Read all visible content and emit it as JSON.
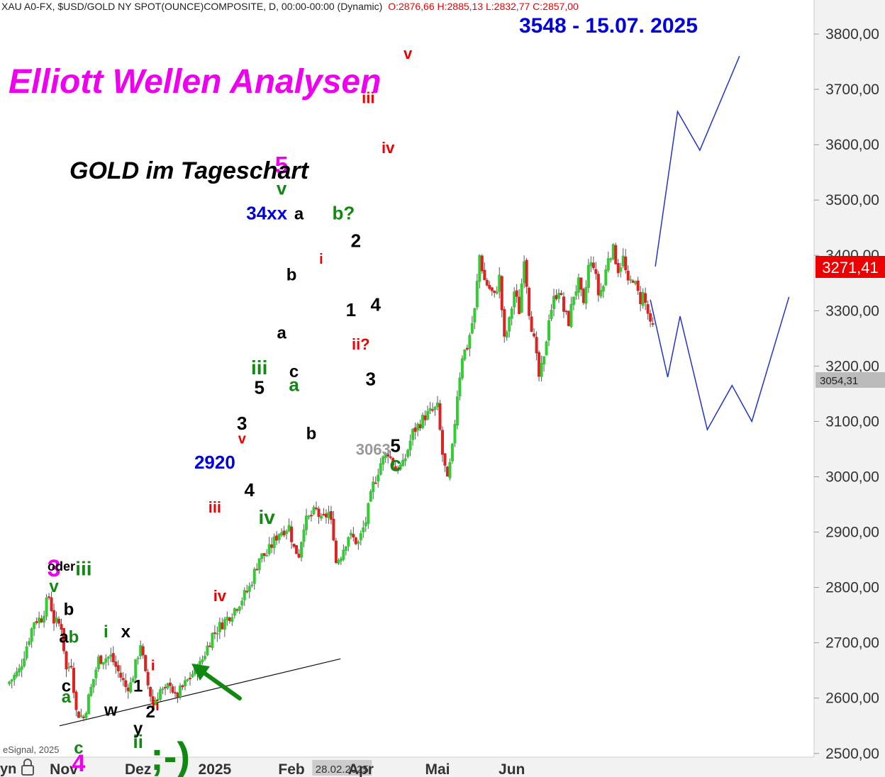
{
  "header": {
    "symbol": "XAU A0-FX, $USD/GOLD NY SPOT(OUNCE)COMPOSITE, D, 00:00-00:00 (Dynamic)",
    "ohlc": "O:2876,66 H:2885,13 L:2832,77 C:2857,00"
  },
  "title": "Elliott Wellen Analysen",
  "subtitle": "GOLD im Tageschart",
  "target_label": "3548 - 15.07. 2025",
  "footer": "eSignal, 2025",
  "lock_label": "yn",
  "colors": {
    "up": "#33cc33",
    "down": "#dd2222",
    "magenta": "#ee00ee",
    "blue": "#0000dd",
    "red": "#ee0000",
    "green": "#118811",
    "black": "#000000",
    "gray": "#999999",
    "price_box": "#ee0000",
    "forecast": "#2233cc"
  },
  "chart_data": {
    "type": "candlestick",
    "ylim": [
      2440,
      3830
    ],
    "ylabel": "",
    "xlabel": "",
    "last_price": "3271,41",
    "level_marker": {
      "value": 3054.31,
      "label": "3054,31"
    },
    "y_ticks": [
      {
        "value": 2500,
        "label": "2500,00"
      },
      {
        "value": 2600,
        "label": "2600,00"
      },
      {
        "value": 2700,
        "label": "2700,00"
      },
      {
        "value": 2800,
        "label": "2800,00"
      },
      {
        "value": 2900,
        "label": "2900,00"
      },
      {
        "value": 3000,
        "label": "3000,00"
      },
      {
        "value": 3100,
        "label": "3100,00"
      },
      {
        "value": 3200,
        "label": "3200,00"
      },
      {
        "value": 3300,
        "label": "3300,00"
      },
      {
        "value": 3400,
        "label": "3400,00"
      },
      {
        "value": 3500,
        "label": "3500,00"
      },
      {
        "value": 3600,
        "label": "3600,00"
      },
      {
        "value": 3700,
        "label": "3700,00"
      },
      {
        "value": 3800,
        "label": "3800,00"
      }
    ],
    "x_ticks": [
      {
        "day": 5,
        "label": "Nov"
      },
      {
        "day": 35,
        "label": "Dez"
      },
      {
        "day": 66,
        "label": "2025"
      },
      {
        "day": 97,
        "label": "Feb"
      },
      {
        "day": 122,
        "label": "28.02.2025"
      },
      {
        "day": 125,
        "label": "Apr"
      },
      {
        "day": 156,
        "label": "Mai"
      },
      {
        "day": 186,
        "label": "Jun"
      }
    ],
    "price_path": [
      [
        -17,
        2625
      ],
      [
        -12,
        2650
      ],
      [
        -6,
        2740
      ],
      [
        -3,
        2745
      ],
      [
        0,
        2785
      ],
      [
        2,
        2740
      ],
      [
        5,
        2730
      ],
      [
        7,
        2650
      ],
      [
        9,
        2665
      ],
      [
        11,
        2575
      ],
      [
        14,
        2565
      ],
      [
        20,
        2670
      ],
      [
        25,
        2675
      ],
      [
        31,
        2620
      ],
      [
        33,
        2625
      ],
      [
        35,
        2660
      ],
      [
        37,
        2700
      ],
      [
        39,
        2640
      ],
      [
        42,
        2590
      ],
      [
        45,
        2615
      ],
      [
        47,
        2610
      ],
      [
        49,
        2630
      ],
      [
        51,
        2600
      ],
      [
        55,
        2625
      ],
      [
        58,
        2645
      ],
      [
        61,
        2660
      ],
      [
        66,
        2715
      ],
      [
        73,
        2750
      ],
      [
        78,
        2780
      ],
      [
        81,
        2800
      ],
      [
        85,
        2855
      ],
      [
        88,
        2860
      ],
      [
        93,
        2900
      ],
      [
        97,
        2910
      ],
      [
        99,
        2870
      ],
      [
        101,
        2860
      ],
      [
        103,
        2915
      ],
      [
        105,
        2925
      ],
      [
        108,
        2940
      ],
      [
        110,
        2920
      ],
      [
        113,
        2935
      ],
      [
        115,
        2895
      ],
      [
        116,
        2845
      ],
      [
        118,
        2860
      ],
      [
        121,
        2895
      ],
      [
        125,
        2880
      ],
      [
        128,
        2920
      ],
      [
        131,
        2985
      ],
      [
        134,
        3025
      ],
      [
        137,
        3045
      ],
      [
        140,
        3015
      ],
      [
        143,
        3020
      ],
      [
        147,
        3080
      ],
      [
        152,
        3110
      ],
      [
        157,
        3125
      ],
      [
        159,
        3040
      ],
      [
        161,
        2990
      ],
      [
        163,
        3050
      ],
      [
        165,
        3150
      ],
      [
        167,
        3220
      ],
      [
        169,
        3235
      ],
      [
        172,
        3300
      ],
      [
        174,
        3400
      ],
      [
        176,
        3355
      ],
      [
        178,
        3340
      ],
      [
        180,
        3325
      ],
      [
        182,
        3360
      ],
      [
        184,
        3245
      ],
      [
        186,
        3280
      ],
      [
        188,
        3335
      ],
      [
        190,
        3300
      ],
      [
        192,
        3400
      ],
      [
        194,
        3300
      ],
      [
        196,
        3245
      ],
      [
        198,
        3180
      ],
      [
        200,
        3210
      ],
      [
        202,
        3290
      ],
      [
        204,
        3320
      ],
      [
        206,
        3340
      ],
      [
        208,
        3300
      ],
      [
        210,
        3280
      ],
      [
        212,
        3330
      ],
      [
        214,
        3350
      ],
      [
        216,
        3305
      ],
      [
        218,
        3380
      ],
      [
        220,
        3385
      ],
      [
        222,
        3330
      ],
      [
        224,
        3345
      ],
      [
        226,
        3400
      ],
      [
        228,
        3410
      ],
      [
        230,
        3375
      ],
      [
        232,
        3395
      ],
      [
        234,
        3345
      ],
      [
        236,
        3360
      ],
      [
        238,
        3330
      ],
      [
        239,
        3320
      ],
      [
        240,
        3330
      ],
      [
        242,
        3295
      ],
      [
        243,
        3270
      ]
    ],
    "forecast_paths": [
      [
        [
          244,
          3380
        ],
        [
          253,
          3660
        ],
        [
          262,
          3590
        ],
        [
          278,
          3760
        ]
      ],
      [
        [
          242,
          3320
        ],
        [
          249,
          3180
        ],
        [
          254,
          3290
        ],
        [
          265,
          3085
        ],
        [
          275,
          3165
        ],
        [
          283,
          3100
        ],
        [
          298,
          3325
        ]
      ]
    ],
    "trendline": [
      [
        9,
        2555
      ],
      [
        81,
        2630
      ]
    ],
    "wave_labels": [
      {
        "text": "3",
        "day": 1,
        "price": 2820,
        "color": "magenta",
        "size": 34
      },
      {
        "text": "v",
        "day": 1,
        "price": 2792,
        "color": "green",
        "size": 24
      },
      {
        "text": "oder",
        "day": 4,
        "price": 2830,
        "color": "black",
        "size": 18
      },
      {
        "text": "iii",
        "day": 13,
        "price": 2822,
        "color": "green",
        "size": 28
      },
      {
        "text": "b",
        "day": 7,
        "price": 2750,
        "color": "black",
        "size": 24
      },
      {
        "text": "a",
        "day": 5,
        "price": 2700,
        "color": "black",
        "size": 24
      },
      {
        "text": "b",
        "day": 9,
        "price": 2700,
        "color": "green",
        "size": 24
      },
      {
        "text": "c",
        "day": 6,
        "price": 2612,
        "color": "black",
        "size": 24
      },
      {
        "text": "a",
        "day": 6,
        "price": 2592,
        "color": "green",
        "size": 24
      },
      {
        "text": "c",
        "day": 11,
        "price": 2500,
        "color": "green",
        "size": 24
      },
      {
        "text": "4",
        "day": 11,
        "price": 2468,
        "color": "magenta",
        "size": 34
      },
      {
        "text": "w",
        "day": 24,
        "price": 2568,
        "color": "black",
        "size": 24
      },
      {
        "text": "i",
        "day": 22,
        "price": 2710,
        "color": "green",
        "size": 24
      },
      {
        "text": "x",
        "day": 30,
        "price": 2710,
        "color": "black",
        "size": 24
      },
      {
        "text": "1",
        "day": 35,
        "price": 2612,
        "color": "black",
        "size": 24
      },
      {
        "text": "i",
        "day": 41,
        "price": 2650,
        "color": "red",
        "size": 20
      },
      {
        "text": "ii",
        "day": 42,
        "price": 2578,
        "color": "red",
        "size": 20
      },
      {
        "text": "2",
        "day": 40,
        "price": 2565,
        "color": "black",
        "size": 24
      },
      {
        "text": "y",
        "day": 35,
        "price": 2535,
        "color": "black",
        "size": 24
      },
      {
        "text": "ii",
        "day": 35,
        "price": 2510,
        "color": "green",
        "size": 26
      },
      {
        "text": ";-)",
        "day": 48,
        "price": 2470,
        "color": "green",
        "size": 56
      },
      {
        "text": "iii",
        "day": 66,
        "price": 2935,
        "color": "red",
        "size": 22
      },
      {
        "text": "iv",
        "day": 68,
        "price": 2775,
        "color": "red",
        "size": 22
      },
      {
        "text": "2920",
        "day": 66,
        "price": 3015,
        "color": "blue",
        "size": 26
      },
      {
        "text": "3",
        "day": 77,
        "price": 3085,
        "color": "black",
        "size": 26
      },
      {
        "text": "v",
        "day": 77,
        "price": 3060,
        "color": "red",
        "size": 20
      },
      {
        "text": "4",
        "day": 80,
        "price": 2965,
        "color": "black",
        "size": 26
      },
      {
        "text": "5",
        "day": 84,
        "price": 3150,
        "color": "black",
        "size": 26
      },
      {
        "text": "iii",
        "day": 84,
        "price": 3185,
        "color": "green",
        "size": 28
      },
      {
        "text": "iv",
        "day": 87,
        "price": 2915,
        "color": "green",
        "size": 28
      },
      {
        "text": "5",
        "day": 93,
        "price": 3548,
        "color": "magenta",
        "size": 34
      },
      {
        "text": "v",
        "day": 93,
        "price": 3510,
        "color": "green",
        "size": 26
      },
      {
        "text": "34xx",
        "day": 87,
        "price": 3465,
        "color": "blue",
        "size": 26
      },
      {
        "text": "a",
        "day": 100,
        "price": 3465,
        "color": "black",
        "size": 24
      },
      {
        "text": "b",
        "day": 97,
        "price": 3355,
        "color": "black",
        "size": 24
      },
      {
        "text": "a",
        "day": 93,
        "price": 3250,
        "color": "black",
        "size": 24
      },
      {
        "text": "c",
        "day": 98,
        "price": 3180,
        "color": "black",
        "size": 24
      },
      {
        "text": "a",
        "day": 98,
        "price": 3155,
        "color": "green",
        "size": 26
      },
      {
        "text": "b",
        "day": 105,
        "price": 3068,
        "color": "black",
        "size": 24
      },
      {
        "text": "i",
        "day": 109,
        "price": 3385,
        "color": "red",
        "size": 20
      },
      {
        "text": "b?",
        "day": 118,
        "price": 3465,
        "color": "green",
        "size": 26
      },
      {
        "text": "2",
        "day": 123,
        "price": 3415,
        "color": "black",
        "size": 26
      },
      {
        "text": "1",
        "day": 121,
        "price": 3290,
        "color": "black",
        "size": 26
      },
      {
        "text": "ii?",
        "day": 125,
        "price": 3230,
        "color": "red",
        "size": 22
      },
      {
        "text": "4",
        "day": 131,
        "price": 3300,
        "color": "black",
        "size": 26
      },
      {
        "text": "3",
        "day": 129,
        "price": 3165,
        "color": "black",
        "size": 26
      },
      {
        "text": "3063",
        "day": 130,
        "price": 3040,
        "color": "gray",
        "size": 22
      },
      {
        "text": "5",
        "day": 139,
        "price": 3045,
        "color": "black",
        "size": 26
      },
      {
        "text": "c",
        "day": 139,
        "price": 3010,
        "color": "green",
        "size": 30
      },
      {
        "text": "iii",
        "day": 128,
        "price": 3675,
        "color": "red",
        "size": 22
      },
      {
        "text": "iv",
        "day": 136,
        "price": 3585,
        "color": "red",
        "size": 22
      },
      {
        "text": "v",
        "day": 144,
        "price": 3755,
        "color": "red",
        "size": 22
      }
    ]
  }
}
